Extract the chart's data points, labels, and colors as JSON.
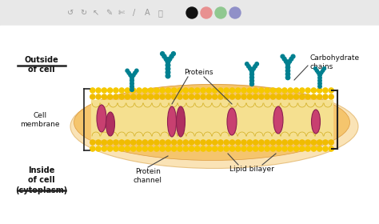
{
  "bg_color": "#ffffff",
  "toolbar_bg": "#e8e8e8",
  "labels": {
    "outside": "Outside\nof cell",
    "cell_membrane": "Cell\nmembrane",
    "inside": "Inside\nof cell\n(cytoplasm)",
    "proteins": "Proteins",
    "carbohydrate": "Carbohydrate\nchains",
    "protein_channel": "Protein\nchannel",
    "lipid_bilayer": "Lipid bilayer"
  },
  "peach_color": "#f5c87a",
  "peach_edge": "#e8a840",
  "lipid_ball_color": "#f5c800",
  "lipid_tail_color": "#e0a800",
  "inner_color": "#f5e0a0",
  "protein_color": "#c0406a",
  "protein_edge": "#8b2050",
  "carbo_color": "#008090",
  "text_color": "#111111",
  "toolbar_icons_color": "#999999",
  "dot_colors": [
    "#111111",
    "#e89090",
    "#90c890",
    "#9090c8"
  ],
  "bracket_color": "#222222"
}
